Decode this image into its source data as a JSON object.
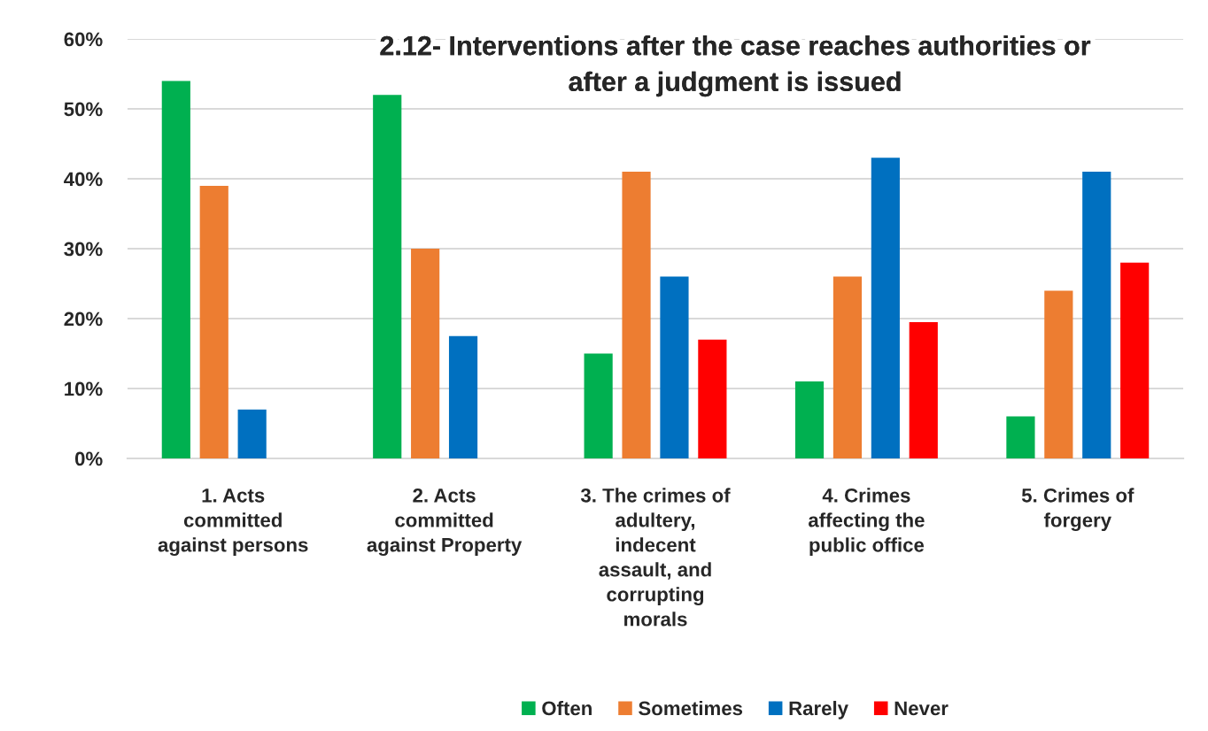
{
  "chart_data": {
    "type": "bar",
    "title": "2.12- Interventions after the case reaches authorities or after a judgment is issued",
    "categories": [
      "1. Acts committed against persons",
      "2. Acts committed against Property",
      "3. The crimes of adultery, indecent assault, and corrupting morals",
      "4. Crimes affecting the public office",
      "5. Crimes of forgery"
    ],
    "series": [
      {
        "name": "Often",
        "color": "#00b050",
        "values": [
          54,
          52,
          15,
          11,
          6
        ]
      },
      {
        "name": "Sometimes",
        "color": "#ed7d31",
        "values": [
          39,
          30,
          41,
          26,
          24
        ]
      },
      {
        "name": "Rarely",
        "color": "#0070c0",
        "values": [
          7,
          17.5,
          26,
          43,
          41
        ]
      },
      {
        "name": "Never",
        "color": "#ff0000",
        "values": [
          null,
          null,
          17,
          19.5,
          28
        ]
      }
    ],
    "ylim": [
      0,
      60
    ],
    "yticks": [
      {
        "value": 0,
        "label": "0%"
      },
      {
        "value": 10,
        "label": "10%"
      },
      {
        "value": 20,
        "label": "20%"
      },
      {
        "value": 30,
        "label": "30%"
      },
      {
        "value": 40,
        "label": "40%"
      },
      {
        "value": 50,
        "label": "50%"
      },
      {
        "value": 60,
        "label": "60%"
      }
    ],
    "grid": "y",
    "legend": "bottom"
  }
}
